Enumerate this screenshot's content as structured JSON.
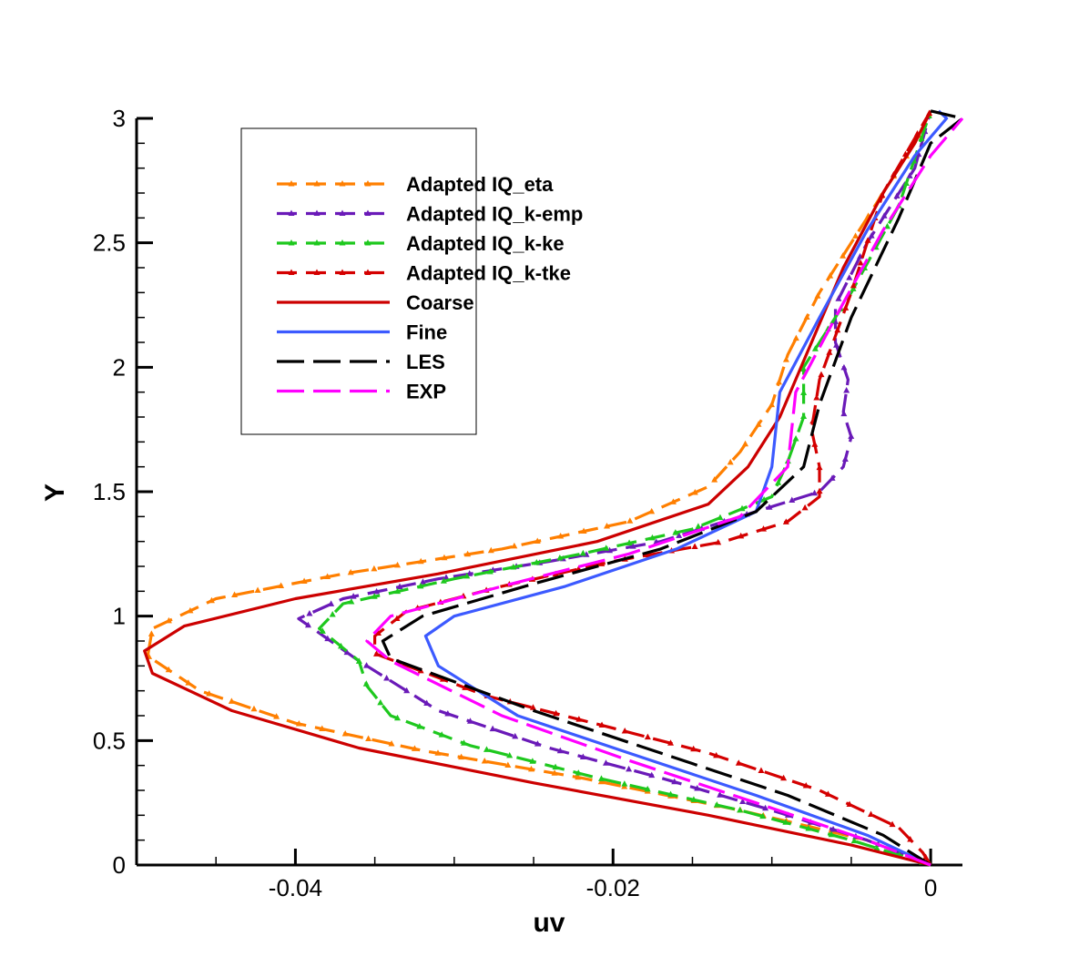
{
  "chart_data": {
    "type": "line",
    "title": "",
    "xlabel": "uv",
    "ylabel": "Y",
    "xlim": [
      -0.05,
      0.002
    ],
    "ylim": [
      0,
      3
    ],
    "grid": false,
    "legend_position": "top-left",
    "x_ticks": [
      {
        "value": -0.04,
        "label": "-0.04"
      },
      {
        "value": -0.02,
        "label": "-0.02"
      },
      {
        "value": 0,
        "label": "0"
      }
    ],
    "y_ticks": [
      {
        "value": 0,
        "label": "0"
      },
      {
        "value": 0.5,
        "label": "0.5"
      },
      {
        "value": 1,
        "label": "1"
      },
      {
        "value": 1.5,
        "label": "1.5"
      },
      {
        "value": 2,
        "label": "2"
      },
      {
        "value": 2.5,
        "label": "2.5"
      },
      {
        "value": 3,
        "label": "3"
      }
    ],
    "series": [
      {
        "name": "Adapted IQ_eta",
        "color": "#ff7f00",
        "dash": "dashed",
        "marker": "triangle",
        "points": [
          [
            0,
            0
          ],
          [
            -0.004,
            0.1
          ],
          [
            -0.012,
            0.22
          ],
          [
            -0.022,
            0.35
          ],
          [
            -0.032,
            0.46
          ],
          [
            -0.04,
            0.57
          ],
          [
            -0.046,
            0.7
          ],
          [
            -0.0493,
            0.84
          ],
          [
            -0.049,
            0.95
          ],
          [
            -0.045,
            1.07
          ],
          [
            -0.037,
            1.17
          ],
          [
            -0.027,
            1.27
          ],
          [
            -0.019,
            1.38
          ],
          [
            -0.014,
            1.52
          ],
          [
            -0.012,
            1.66
          ],
          [
            -0.01,
            1.85
          ],
          [
            -0.009,
            2.05
          ],
          [
            -0.007,
            2.3
          ],
          [
            -0.004,
            2.6
          ],
          [
            -0.001,
            2.9
          ],
          [
            0,
            3.03
          ]
        ]
      },
      {
        "name": "Adapted IQ_k-emp",
        "color": "#6a1ab8",
        "dash": "dashed",
        "marker": "triangle",
        "points": [
          [
            0,
            0
          ],
          [
            -0.004,
            0.1
          ],
          [
            -0.01,
            0.22
          ],
          [
            -0.017,
            0.35
          ],
          [
            -0.024,
            0.47
          ],
          [
            -0.031,
            0.62
          ],
          [
            -0.036,
            0.82
          ],
          [
            -0.038,
            0.91
          ],
          [
            -0.0398,
            0.99
          ],
          [
            -0.037,
            1.07
          ],
          [
            -0.031,
            1.15
          ],
          [
            -0.024,
            1.22
          ],
          [
            -0.017,
            1.3
          ],
          [
            -0.012,
            1.4
          ],
          [
            -0.007,
            1.5
          ],
          [
            -0.0055,
            1.6
          ],
          [
            -0.005,
            1.72
          ],
          [
            -0.0055,
            1.82
          ],
          [
            -0.0052,
            1.95
          ],
          [
            -0.006,
            2.1
          ],
          [
            -0.006,
            2.25
          ],
          [
            -0.004,
            2.5
          ],
          [
            -0.001,
            2.8
          ],
          [
            0,
            3.03
          ]
        ]
      },
      {
        "name": "Adapted IQ_k-ke",
        "color": "#1ec81e",
        "dash": "dashed",
        "marker": "triangle",
        "points": [
          [
            0,
            0
          ],
          [
            -0.005,
            0.1
          ],
          [
            -0.012,
            0.22
          ],
          [
            -0.021,
            0.35
          ],
          [
            -0.029,
            0.48
          ],
          [
            -0.034,
            0.6
          ],
          [
            -0.0355,
            0.72
          ],
          [
            -0.036,
            0.82
          ],
          [
            -0.0385,
            0.95
          ],
          [
            -0.037,
            1.05
          ],
          [
            -0.03,
            1.15
          ],
          [
            -0.022,
            1.25
          ],
          [
            -0.015,
            1.35
          ],
          [
            -0.01,
            1.48
          ],
          [
            -0.009,
            1.62
          ],
          [
            -0.008,
            1.8
          ],
          [
            -0.008,
            2.0
          ],
          [
            -0.005,
            2.3
          ],
          [
            -0.002,
            2.65
          ],
          [
            0,
            3.03
          ]
        ]
      },
      {
        "name": "Adapted IQ_k-tke",
        "color": "#d40000",
        "dash": "dashed",
        "marker": "triangle",
        "points": [
          [
            0,
            0
          ],
          [
            -0.0005,
            0.05
          ],
          [
            -0.002,
            0.15
          ],
          [
            -0.007,
            0.3
          ],
          [
            -0.014,
            0.45
          ],
          [
            -0.02,
            0.55
          ],
          [
            -0.028,
            0.68
          ],
          [
            -0.035,
            0.85
          ],
          [
            -0.035,
            0.92
          ],
          [
            -0.033,
            1.02
          ],
          [
            -0.027,
            1.12
          ],
          [
            -0.02,
            1.22
          ],
          [
            -0.013,
            1.3
          ],
          [
            -0.009,
            1.38
          ],
          [
            -0.007,
            1.48
          ],
          [
            -0.007,
            1.6
          ],
          [
            -0.0075,
            1.75
          ],
          [
            -0.007,
            1.95
          ],
          [
            -0.005,
            2.3
          ],
          [
            -0.003,
            2.7
          ],
          [
            0,
            3.03
          ]
        ]
      },
      {
        "name": "Coarse",
        "color": "#cc0000",
        "dash": "solid",
        "marker": "",
        "points": [
          [
            0,
            0
          ],
          [
            -0.005,
            0.08
          ],
          [
            -0.014,
            0.2
          ],
          [
            -0.025,
            0.33
          ],
          [
            -0.036,
            0.47
          ],
          [
            -0.044,
            0.62
          ],
          [
            -0.049,
            0.77
          ],
          [
            -0.0495,
            0.86
          ],
          [
            -0.047,
            0.96
          ],
          [
            -0.04,
            1.07
          ],
          [
            -0.031,
            1.17
          ],
          [
            -0.021,
            1.3
          ],
          [
            -0.014,
            1.45
          ],
          [
            -0.0115,
            1.6
          ],
          [
            -0.0095,
            1.8
          ],
          [
            -0.0075,
            2.1
          ],
          [
            -0.0055,
            2.4
          ],
          [
            -0.003,
            2.7
          ],
          [
            -0.001,
            2.9
          ],
          [
            0,
            3.03
          ]
        ]
      },
      {
        "name": "Fine",
        "color": "#3c5aff",
        "dash": "solid",
        "marker": "",
        "points": [
          [
            0,
            0
          ],
          [
            -0.004,
            0.12
          ],
          [
            -0.011,
            0.28
          ],
          [
            -0.019,
            0.45
          ],
          [
            -0.026,
            0.6
          ],
          [
            -0.031,
            0.8
          ],
          [
            -0.0318,
            0.92
          ],
          [
            -0.03,
            1.0
          ],
          [
            -0.023,
            1.12
          ],
          [
            -0.016,
            1.27
          ],
          [
            -0.011,
            1.42
          ],
          [
            -0.01,
            1.6
          ],
          [
            -0.0095,
            1.9
          ],
          [
            -0.007,
            2.2
          ],
          [
            -0.004,
            2.55
          ],
          [
            -0.001,
            2.85
          ],
          [
            0.001,
            3.0
          ],
          [
            0.0005,
            3.03
          ]
        ]
      },
      {
        "name": "LES",
        "color": "#000000",
        "dash": "longdash",
        "marker": "",
        "points": [
          [
            0,
            0
          ],
          [
            -0.003,
            0.12
          ],
          [
            -0.009,
            0.28
          ],
          [
            -0.017,
            0.45
          ],
          [
            -0.025,
            0.62
          ],
          [
            -0.034,
            0.83
          ],
          [
            -0.0345,
            0.9
          ],
          [
            -0.032,
            1.0
          ],
          [
            -0.025,
            1.13
          ],
          [
            -0.017,
            1.27
          ],
          [
            -0.011,
            1.42
          ],
          [
            -0.008,
            1.6
          ],
          [
            -0.007,
            1.85
          ],
          [
            -0.005,
            2.2
          ],
          [
            -0.002,
            2.6
          ],
          [
            0,
            2.9
          ],
          [
            0.002,
            3.0
          ],
          [
            0,
            3.03
          ]
        ]
      },
      {
        "name": "EXP",
        "color": "#ff00ff",
        "dash": "longdash",
        "marker": "",
        "points": [
          [
            0,
            0
          ],
          [
            -0.004,
            0.1
          ],
          [
            -0.011,
            0.25
          ],
          [
            -0.019,
            0.42
          ],
          [
            -0.027,
            0.6
          ],
          [
            -0.034,
            0.82
          ],
          [
            -0.0355,
            0.9
          ],
          [
            -0.034,
            1.0
          ],
          [
            -0.027,
            1.12
          ],
          [
            -0.019,
            1.25
          ],
          [
            -0.012,
            1.4
          ],
          [
            -0.009,
            1.6
          ],
          [
            -0.0085,
            1.9
          ],
          [
            -0.006,
            2.2
          ],
          [
            -0.003,
            2.55
          ],
          [
            0,
            2.85
          ],
          [
            0.002,
            3.0
          ]
        ]
      }
    ]
  }
}
